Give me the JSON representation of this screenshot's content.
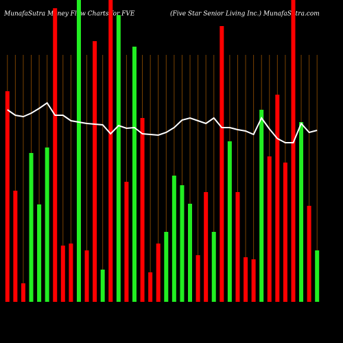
{
  "chart_data": {
    "type": "bar-line",
    "title": "MunafaSutra  Money Flow  Charts for FVE",
    "subtitle": "(Five  Star Senior Living Inc.) MunafaSutra.com",
    "categories": [
      null,
      null,
      null,
      null,
      null,
      null,
      null,
      null,
      null,
      null,
      null,
      null,
      null,
      null,
      null,
      null,
      null,
      null,
      null,
      null,
      null,
      null,
      null,
      null,
      null,
      null,
      null,
      null,
      null,
      null,
      null,
      null,
      null,
      null,
      null,
      null,
      null,
      null,
      null,
      null
    ],
    "ylim": [
      0,
      440
    ],
    "grid": true,
    "grid_color": "#7a4200",
    "series": [
      {
        "type": "bar",
        "values": [
          307,
          162,
          27,
          217,
          142,
          225,
          428,
          82,
          85,
          440,
          75,
          380,
          47,
          440,
          418,
          175,
          372,
          268,
          43,
          85,
          102,
          184,
          170,
          143,
          68,
          160,
          102,
          402,
          234,
          160,
          65,
          62,
          280,
          212,
          302,
          203,
          440,
          262,
          140,
          75
        ],
        "colors": [
          "#ff0000",
          "#ff0000",
          "#ff0000",
          "#22ee22",
          "#22ee22",
          "#22ee22",
          "#ff0000",
          "#ff0000",
          "#ff0000",
          "#22ee22",
          "#ff0000",
          "#ff0000",
          "#22ee22",
          "#ff0000",
          "#22ee22",
          "#ff0000",
          "#22ee22",
          "#ff0000",
          "#ff0000",
          "#ff0000",
          "#22ee22",
          "#22ee22",
          "#22ee22",
          "#22ee22",
          "#ff0000",
          "#ff0000",
          "#22ee22",
          "#ff0000",
          "#22ee22",
          "#ff0000",
          "#ff0000",
          "#ff0000",
          "#22ee22",
          "#ff0000",
          "#ff0000",
          "#ff0000",
          "#ff0000",
          "#22ee22",
          "#ff0000",
          "#22ee22"
        ]
      },
      {
        "type": "line",
        "color": "#ffffff",
        "values": [
          280,
          272,
          270,
          275,
          282,
          290,
          272,
          272,
          264,
          262,
          260,
          259,
          258,
          245,
          257,
          253,
          254,
          245,
          244,
          243,
          247,
          254,
          265,
          268,
          264,
          260,
          268,
          254,
          254,
          251,
          249,
          244,
          268,
          252,
          238,
          232,
          232,
          260,
          247,
          250
        ]
      }
    ]
  }
}
